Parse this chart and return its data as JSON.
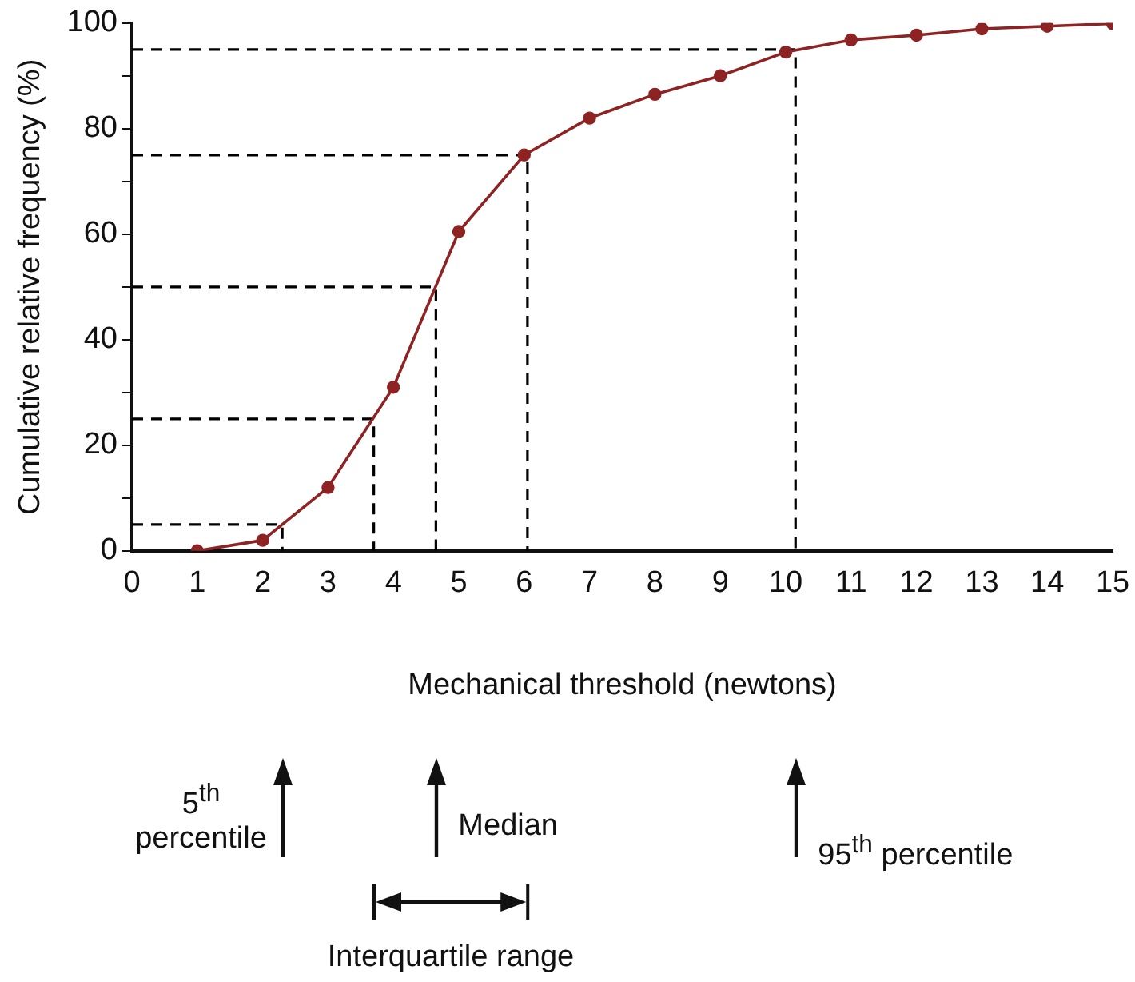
{
  "chart_data": {
    "type": "line",
    "xlabel": "Mechanical threshold (newtons)",
    "ylabel": "Cumulative relative frequency (%)",
    "x": [
      1,
      2,
      3,
      4,
      5,
      6,
      7,
      8,
      9,
      10,
      11,
      12,
      13,
      14,
      15
    ],
    "series": [
      {
        "color": "#8e2323",
        "marker": "circle",
        "values": [
          0,
          2,
          12,
          31,
          60.5,
          75,
          82,
          86.5,
          90,
          94.5,
          96.8,
          97.7,
          98.9,
          99.4,
          99.9
        ]
      },
      {
        "type": "line",
        "color": "#000000",
        "line_style": "dashed",
        "marker": "none",
        "x": [
          0,
          2.3,
          2.3
        ],
        "values": [
          5,
          5,
          0
        ]
      },
      {
        "type": "line",
        "color": "#000000",
        "line_style": "dashed",
        "marker": "none",
        "x": [
          0,
          3.7,
          3.7
        ],
        "values": [
          25,
          25,
          0
        ]
      },
      {
        "type": "line",
        "color": "#000000",
        "line_style": "dashed",
        "marker": "none",
        "x": [
          0,
          4.65,
          4.65
        ],
        "values": [
          50,
          50,
          0
        ]
      },
      {
        "type": "line",
        "color": "#000000",
        "line_style": "dashed",
        "marker": "none",
        "x": [
          0,
          6.05,
          6.05
        ],
        "values": [
          75,
          75,
          0
        ]
      },
      {
        "type": "line",
        "color": "#000000",
        "line_style": "dashed",
        "marker": "none",
        "x": [
          0,
          10.15,
          10.15
        ],
        "values": [
          95,
          95,
          0
        ]
      }
    ],
    "xlim": [
      0,
      15
    ],
    "xticks": [
      0,
      1,
      2,
      3,
      4,
      5,
      6,
      7,
      8,
      9,
      10,
      11,
      12,
      13,
      14,
      15
    ],
    "ylim": [
      0,
      100
    ],
    "yticks": [
      0,
      {
        "value": 10,
        "label": null
      },
      20,
      {
        "value": 30,
        "label": null
      },
      40,
      {
        "value": 50,
        "label": null
      },
      60,
      {
        "value": 70,
        "label": null
      },
      80,
      {
        "value": 90,
        "label": null
      },
      100
    ],
    "grid": false,
    "legend": false,
    "annotations": [
      "5$^{th}$ percentile",
      "Median",
      "95$^{th}$ percentile",
      "Interquartile range"
    ]
  }
}
